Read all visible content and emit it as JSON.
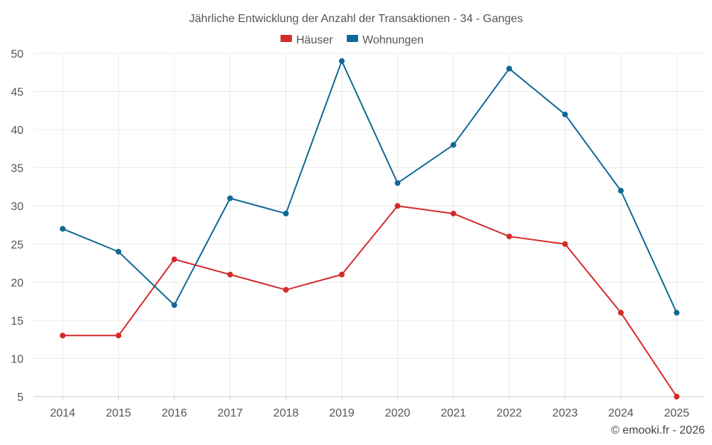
{
  "chart_data": {
    "type": "line",
    "title": "Jährliche Entwicklung der Anzahl der Transaktionen - 34 - Ganges",
    "categories": [
      "2014",
      "2015",
      "2016",
      "2017",
      "2018",
      "2019",
      "2020",
      "2021",
      "2022",
      "2023",
      "2024",
      "2025"
    ],
    "series": [
      {
        "name": "Häuser",
        "color": "#d42a2a",
        "values": [
          13,
          13,
          23,
          21,
          19,
          21,
          30,
          29,
          26,
          25,
          16,
          5
        ]
      },
      {
        "name": "Wohnungen",
        "color": "#0f6896",
        "values": [
          27,
          24,
          17,
          31,
          29,
          49,
          33,
          38,
          48,
          42,
          32,
          16
        ]
      }
    ],
    "ylim": [
      5,
      50
    ],
    "yticks": [
      5,
      10,
      15,
      20,
      25,
      30,
      35,
      40,
      45,
      50
    ],
    "grid": true,
    "legend_position": "top-center",
    "credit": "© emooki.fr - 2026"
  }
}
